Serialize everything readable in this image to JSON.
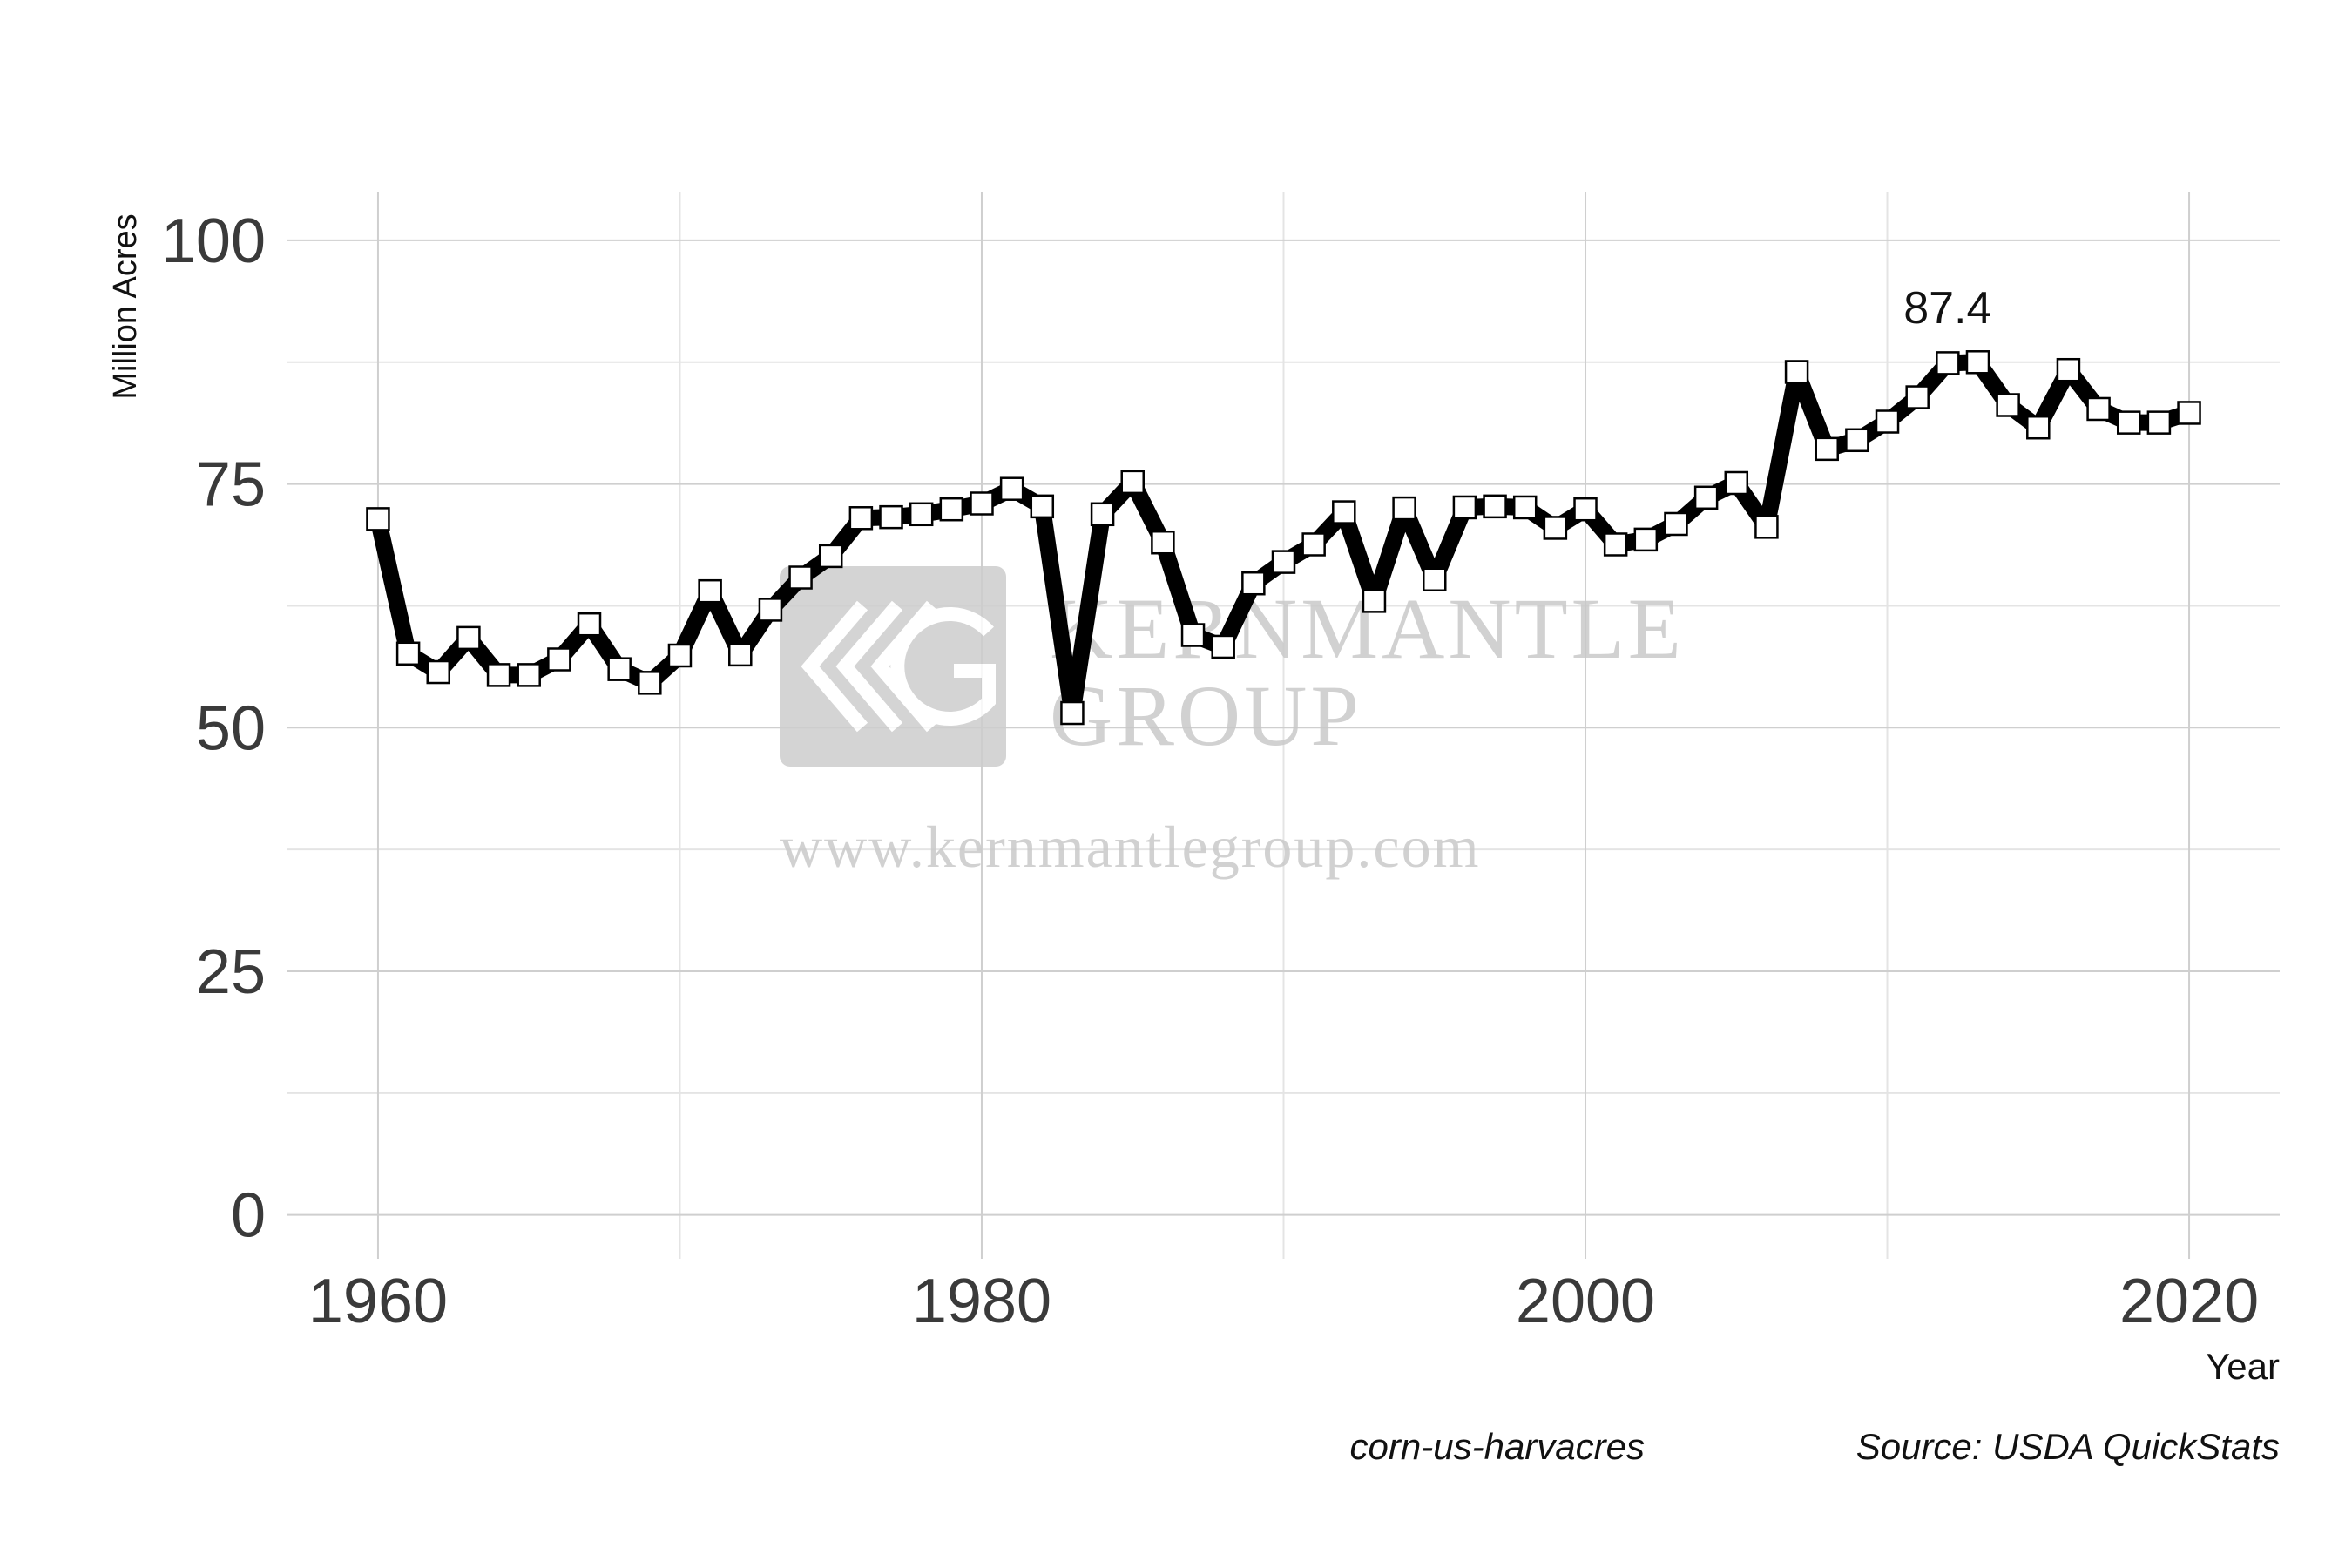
{
  "chart_data": {
    "type": "line",
    "title": "",
    "xlabel": "Year",
    "ylabel": "Million Acres",
    "xlim": [
      1957,
      2023
    ],
    "ylim": [
      -4.5,
      105
    ],
    "x_ticks": [
      1960,
      1980,
      2000,
      2020
    ],
    "y_ticks": [
      0,
      25,
      50,
      75,
      100
    ],
    "grid": true,
    "legend": "none",
    "series": [
      {
        "x": [
          1960,
          1961,
          1962,
          1963,
          1964,
          1965,
          1966,
          1967,
          1968,
          1969,
          1970,
          1971,
          1972,
          1973,
          1974,
          1975,
          1976,
          1977,
          1978,
          1979,
          1980,
          1981,
          1982,
          1983,
          1984,
          1985,
          1986,
          1987,
          1988,
          1989,
          1990,
          1991,
          1992,
          1993,
          1994,
          1995,
          1996,
          1997,
          1998,
          1999,
          2000,
          2001,
          2002,
          2003,
          2004,
          2005,
          2006,
          2007,
          2008,
          2009,
          2010,
          2011,
          2012,
          2013,
          2014,
          2015,
          2016,
          2017,
          2018,
          2019,
          2020
        ],
        "y": [
          71.4,
          57.6,
          55.7,
          59.2,
          55.4,
          55.4,
          57.0,
          60.6,
          56.0,
          54.6,
          57.4,
          64.0,
          57.5,
          62.1,
          65.4,
          67.6,
          71.5,
          71.6,
          71.9,
          72.4,
          73.0,
          74.5,
          72.7,
          51.5,
          71.9,
          75.2,
          69.0,
          59.5,
          58.3,
          64.8,
          67.0,
          68.8,
          72.1,
          63.0,
          72.5,
          65.2,
          72.6,
          72.7,
          72.6,
          70.5,
          72.4,
          68.8,
          69.3,
          70.9,
          73.6,
          75.1,
          70.6,
          86.5,
          78.6,
          79.5,
          81.4,
          83.9,
          87.4,
          87.5,
          83.1,
          80.8,
          86.7,
          82.7,
          81.3,
          81.3,
          82.3
        ]
      }
    ],
    "annotations": [
      {
        "text": "87.4",
        "x": 2012,
        "y": 87.4
      }
    ],
    "caption_left": "corn-us-harvacres",
    "caption_right": "Source: USDA QuickStats",
    "watermark": {
      "line1": "KERNMANTLE",
      "line2": "GROUP",
      "url": "www.kernmantlegroup.com"
    },
    "colors": {
      "line": "#000000",
      "marker_fill": "#ffffff",
      "marker_stroke": "#000000",
      "watermark": "#c9c9c9"
    }
  }
}
